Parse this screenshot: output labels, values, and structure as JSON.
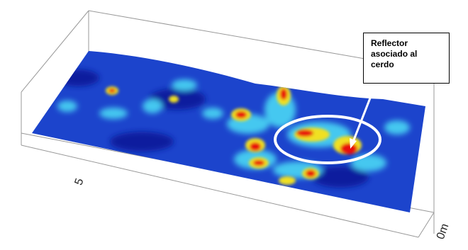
{
  "annotation": {
    "text": "Reflector asociado al cerdo"
  },
  "axis_labels": {
    "middle": "5",
    "end": "0m"
  }
}
